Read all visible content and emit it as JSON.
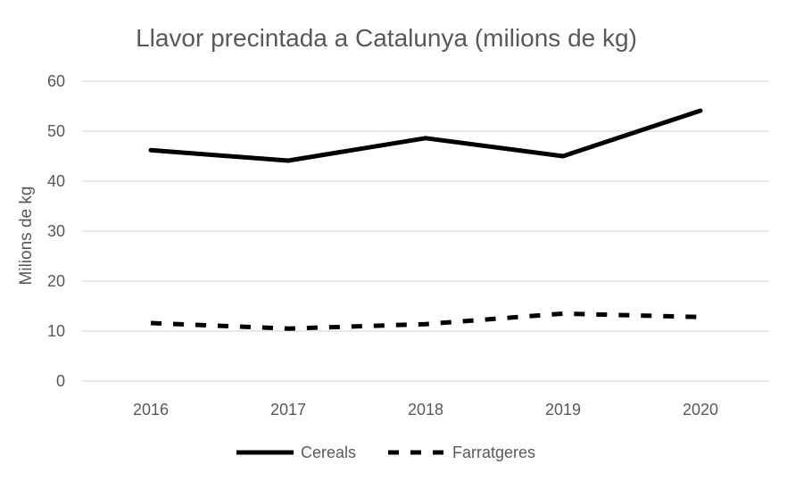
{
  "chart_data": {
    "type": "line",
    "title": "Llavor precintada a Catalunya (milions de kg)",
    "xlabel": "",
    "ylabel": "Milions de kg",
    "categories": [
      "2016",
      "2017",
      "2018",
      "2019",
      "2020"
    ],
    "ylim": [
      0,
      60
    ],
    "yticks": [
      0,
      10,
      20,
      30,
      40,
      50,
      60
    ],
    "grid": true,
    "legend_position": "bottom",
    "series": [
      {
        "name": "Cereals",
        "values": [
          46.2,
          44.1,
          48.6,
          45.0,
          54.1
        ],
        "style": "solid",
        "color": "#000000"
      },
      {
        "name": "Farratgeres",
        "values": [
          11.6,
          10.5,
          11.4,
          13.5,
          12.8
        ],
        "style": "dashed",
        "color": "#000000"
      }
    ]
  }
}
